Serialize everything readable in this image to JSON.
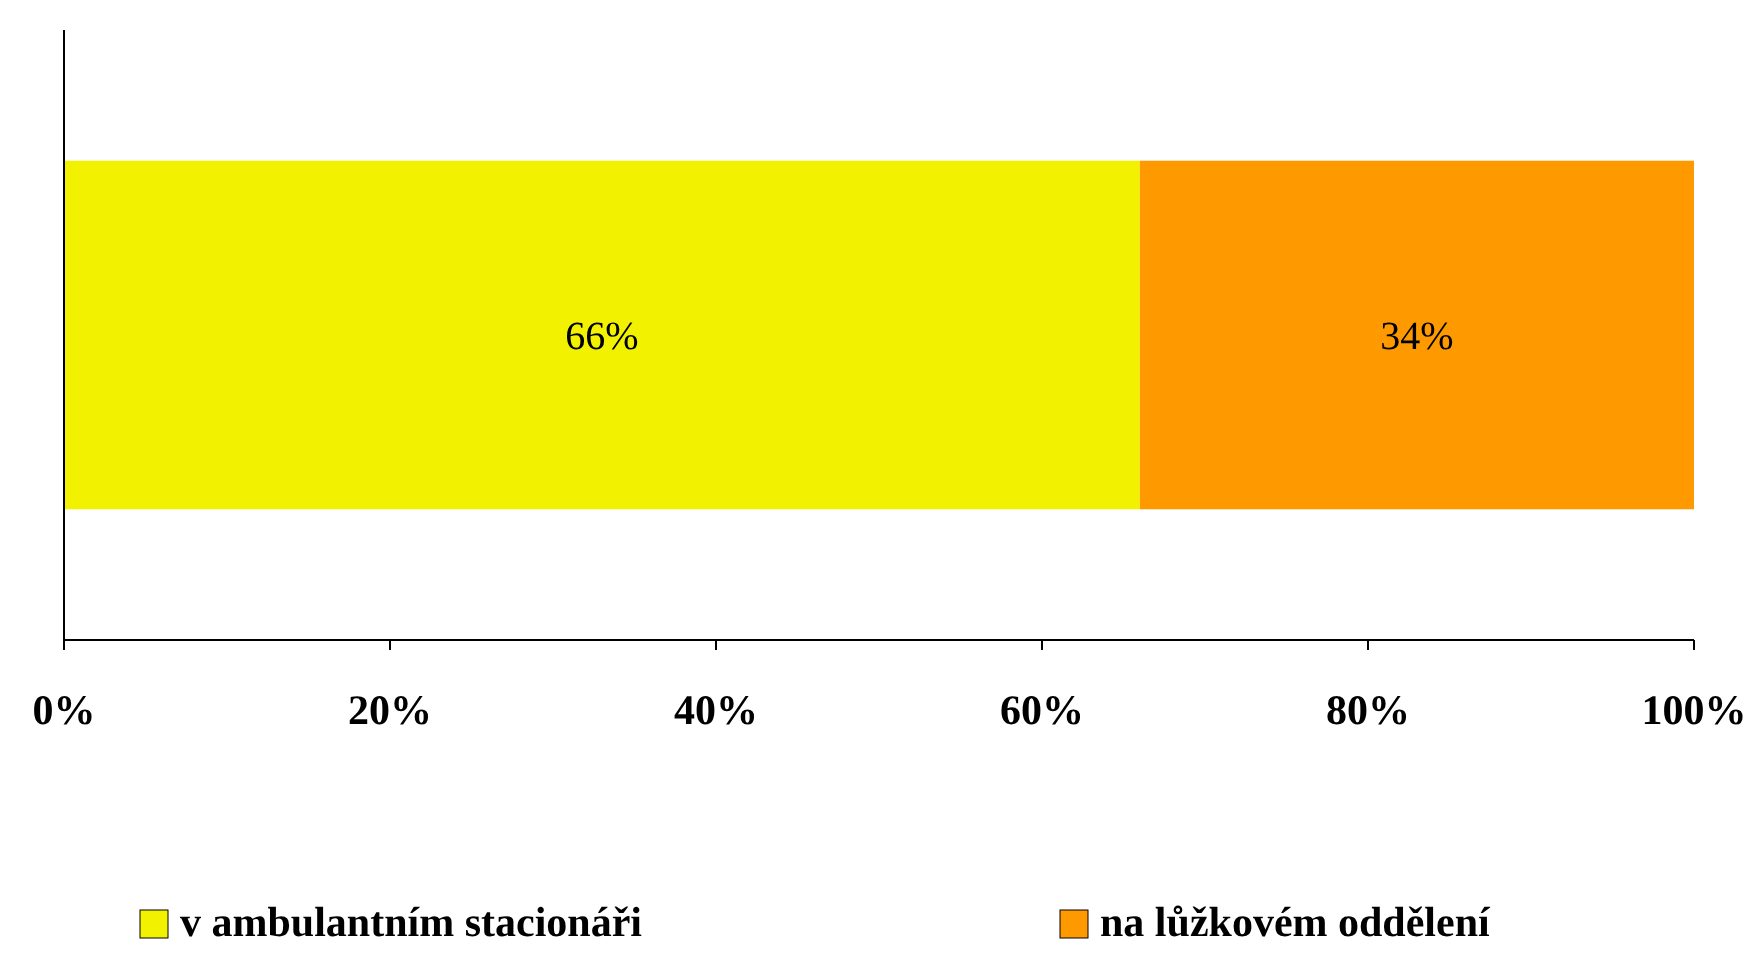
{
  "chart_data": {
    "type": "bar",
    "orientation": "horizontal",
    "stacked": true,
    "categories": [
      null
    ],
    "series": [
      {
        "name": "v ambulantním stacionáři",
        "color": "#f2f200",
        "values": [
          66
        ],
        "value_labels": [
          "66%"
        ]
      },
      {
        "name": "na lůžkovém oddělení",
        "color": "#ff9900",
        "values": [
          34
        ],
        "value_labels": [
          "34%"
        ]
      }
    ],
    "xlim": [
      0,
      100
    ],
    "xticks": [
      {
        "value": 0,
        "label": "0%"
      },
      {
        "value": 20,
        "label": "20%"
      },
      {
        "value": 40,
        "label": "40%"
      },
      {
        "value": 60,
        "label": "60%"
      },
      {
        "value": 80,
        "label": "80%"
      },
      {
        "value": 100,
        "label": "100%"
      }
    ],
    "grid": false,
    "legend": "bottom"
  }
}
